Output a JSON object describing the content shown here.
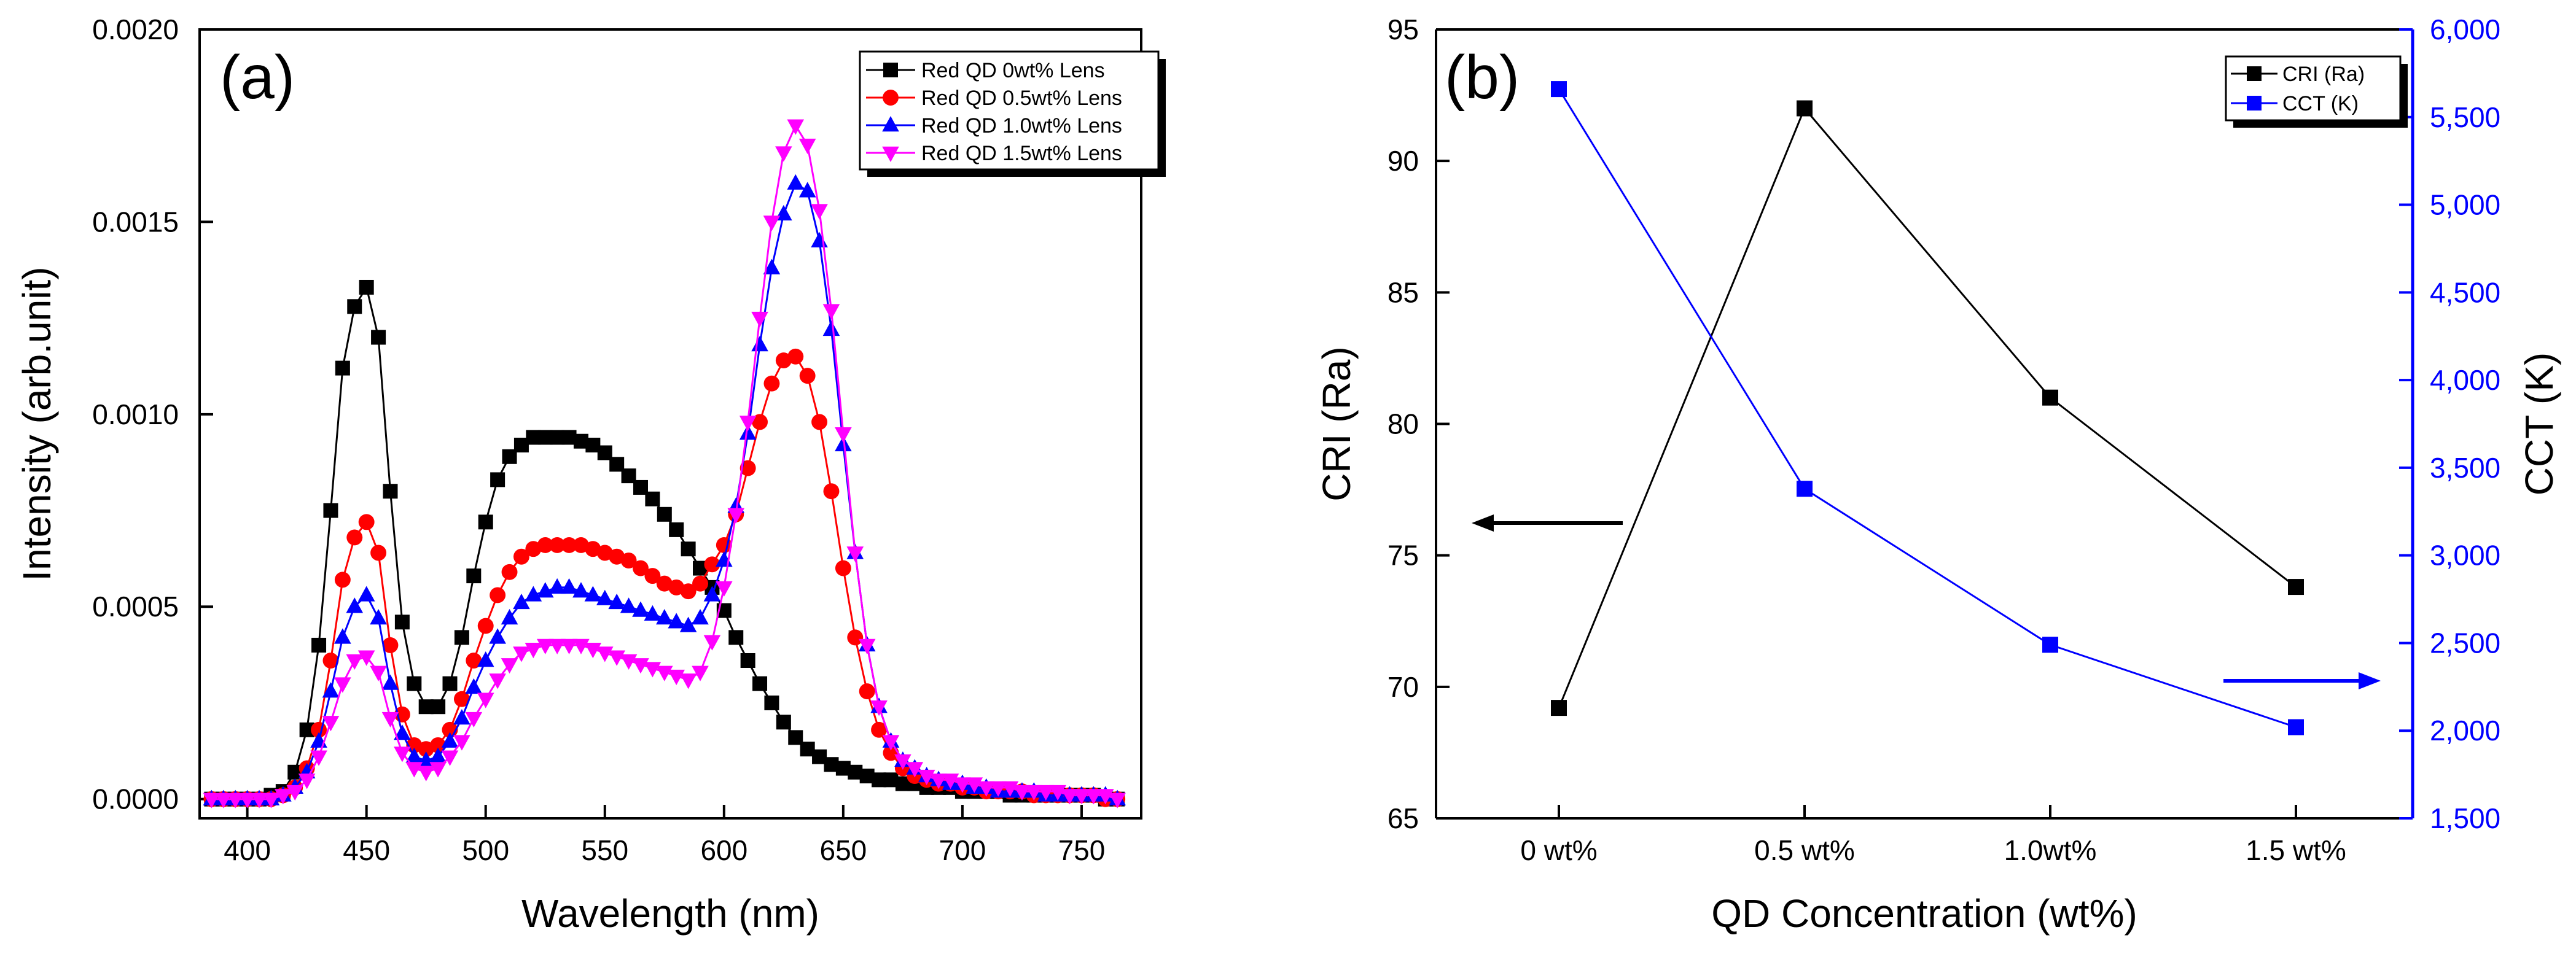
{
  "chart_data": [
    {
      "type": "scatter",
      "panel_label": "(a)",
      "xlabel": "Wavelength (nm)",
      "ylabel": "Intensity (arb.unit)",
      "xlim": [
        380,
        775
      ],
      "ylim": [
        -5e-05,
        0.002
      ],
      "xticks": [
        400,
        450,
        500,
        550,
        600,
        650,
        700,
        750
      ],
      "yticks": [
        0.0,
        0.0005,
        0.001,
        0.0015,
        0.002
      ],
      "ytick_labels": [
        "0.0000",
        "0.0005",
        "0.0010",
        "0.0015",
        "0.0020"
      ],
      "legend_position": "top-right",
      "x": [
        385,
        390,
        395,
        400,
        405,
        410,
        415,
        420,
        425,
        430,
        435,
        440,
        445,
        450,
        455,
        460,
        465,
        470,
        475,
        480,
        485,
        490,
        495,
        500,
        505,
        510,
        515,
        520,
        525,
        530,
        535,
        540,
        545,
        550,
        555,
        560,
        565,
        570,
        575,
        580,
        585,
        590,
        595,
        600,
        605,
        610,
        615,
        620,
        625,
        630,
        635,
        640,
        645,
        650,
        655,
        660,
        665,
        670,
        675,
        680,
        685,
        690,
        695,
        700,
        705,
        710,
        715,
        720,
        725,
        730,
        735,
        740,
        745,
        750,
        755,
        760,
        765
      ],
      "series": [
        {
          "name": "Red QD 0wt% Lens",
          "color": "#000000",
          "marker": "square",
          "values": [
            0.0,
            0.0,
            0.0,
            0.0,
            0.0,
            1e-05,
            2e-05,
            7e-05,
            0.00018,
            0.0004,
            0.00075,
            0.00112,
            0.00128,
            0.00133,
            0.0012,
            0.0008,
            0.00046,
            0.0003,
            0.00024,
            0.00024,
            0.0003,
            0.00042,
            0.00058,
            0.00072,
            0.00083,
            0.00089,
            0.00092,
            0.00094,
            0.00094,
            0.00094,
            0.00094,
            0.00093,
            0.00092,
            0.0009,
            0.00087,
            0.00084,
            0.00081,
            0.00078,
            0.00074,
            0.0007,
            0.00065,
            0.0006,
            0.00055,
            0.00049,
            0.00042,
            0.00036,
            0.0003,
            0.00025,
            0.0002,
            0.00016,
            0.00013,
            0.00011,
            9e-05,
            8e-05,
            7e-05,
            6e-05,
            5e-05,
            5e-05,
            4e-05,
            4e-05,
            3e-05,
            3e-05,
            3e-05,
            2e-05,
            2e-05,
            2e-05,
            2e-05,
            1e-05,
            1e-05,
            1e-05,
            1e-05,
            1e-05,
            1e-05,
            1e-05,
            1e-05,
            0.0,
            0.0
          ]
        },
        {
          "name": "Red QD 0.5wt% Lens",
          "color": "#ff0000",
          "marker": "circle",
          "values": [
            0.0,
            0.0,
            0.0,
            0.0,
            0.0,
            0.0,
            1e-05,
            3e-05,
            8e-05,
            0.00018,
            0.00036,
            0.00057,
            0.00068,
            0.00072,
            0.00064,
            0.0004,
            0.00022,
            0.00014,
            0.00013,
            0.00014,
            0.00018,
            0.00026,
            0.00036,
            0.00045,
            0.00053,
            0.00059,
            0.00063,
            0.00065,
            0.00066,
            0.00066,
            0.00066,
            0.00066,
            0.00065,
            0.00064,
            0.00063,
            0.00062,
            0.0006,
            0.00058,
            0.00056,
            0.00055,
            0.00054,
            0.00056,
            0.00061,
            0.00066,
            0.00074,
            0.00086,
            0.00098,
            0.00108,
            0.00114,
            0.00115,
            0.0011,
            0.00098,
            0.0008,
            0.0006,
            0.00042,
            0.00028,
            0.00018,
            0.00012,
            8e-05,
            6e-05,
            5e-05,
            4e-05,
            4e-05,
            3e-05,
            3e-05,
            2e-05,
            2e-05,
            2e-05,
            2e-05,
            1e-05,
            1e-05,
            1e-05,
            1e-05,
            1e-05,
            1e-05,
            0.0,
            0.0
          ]
        },
        {
          "name": "Red QD 1.0wt% Lens",
          "color": "#0000ff",
          "marker": "triangle-up",
          "values": [
            0.0,
            0.0,
            0.0,
            0.0,
            0.0,
            0.0,
            1e-05,
            3e-05,
            7e-05,
            0.00015,
            0.00028,
            0.00042,
            0.0005,
            0.00053,
            0.00047,
            0.0003,
            0.00017,
            0.00011,
            0.0001,
            0.00011,
            0.00015,
            0.00021,
            0.00029,
            0.00036,
            0.00042,
            0.00047,
            0.00051,
            0.00053,
            0.00054,
            0.00055,
            0.00055,
            0.00054,
            0.00053,
            0.00052,
            0.00051,
            0.0005,
            0.00049,
            0.00048,
            0.00047,
            0.00046,
            0.00045,
            0.00047,
            0.00053,
            0.00062,
            0.00076,
            0.00095,
            0.00118,
            0.00138,
            0.00152,
            0.0016,
            0.00158,
            0.00145,
            0.00122,
            0.00092,
            0.00064,
            0.0004,
            0.00024,
            0.00015,
            0.0001,
            8e-05,
            6e-05,
            5e-05,
            4e-05,
            4e-05,
            3e-05,
            3e-05,
            2e-05,
            2e-05,
            2e-05,
            2e-05,
            1e-05,
            1e-05,
            1e-05,
            1e-05,
            1e-05,
            1e-05,
            0.0
          ]
        },
        {
          "name": "Red QD 1.5wt% Lens",
          "color": "#ff00ff",
          "marker": "triangle-down",
          "values": [
            0.0,
            0.0,
            0.0,
            0.0,
            0.0,
            0.0,
            1e-05,
            2e-05,
            5e-05,
            0.00011,
            0.0002,
            0.0003,
            0.00036,
            0.00037,
            0.00033,
            0.00021,
            0.00012,
            8e-05,
            7e-05,
            8e-05,
            0.00011,
            0.00015,
            0.00021,
            0.00026,
            0.00031,
            0.00035,
            0.00038,
            0.00039,
            0.0004,
            0.0004,
            0.0004,
            0.0004,
            0.00039,
            0.00038,
            0.00037,
            0.00036,
            0.00035,
            0.00034,
            0.00033,
            0.00032,
            0.00031,
            0.00033,
            0.00041,
            0.00055,
            0.00074,
            0.00098,
            0.00125,
            0.0015,
            0.00168,
            0.00175,
            0.0017,
            0.00153,
            0.00127,
            0.00095,
            0.00064,
            0.0004,
            0.00024,
            0.00015,
            0.0001,
            8e-05,
            6e-05,
            5e-05,
            5e-05,
            4e-05,
            4e-05,
            3e-05,
            3e-05,
            3e-05,
            2e-05,
            2e-05,
            2e-05,
            2e-05,
            1e-05,
            1e-05,
            1e-05,
            1e-05,
            0.0
          ]
        }
      ]
    },
    {
      "type": "line",
      "panel_label": "(b)",
      "xlabel": "QD Concentration (wt%)",
      "categories": [
        "0 wt%",
        "0.5 wt%",
        "1.0wt%",
        "1.5 wt%"
      ],
      "legend_position": "top-right",
      "left_axis": {
        "label": "CRI (Ra)",
        "ylim": [
          65,
          95
        ],
        "ticks": [
          65,
          70,
          75,
          80,
          85,
          90,
          95
        ],
        "tick_labels": [
          "65",
          "70",
          "75",
          "80",
          "85",
          "90",
          "95"
        ]
      },
      "right_axis": {
        "label": "CCT (K)",
        "ylim": [
          1500,
          6000
        ],
        "ticks": [
          1500,
          2000,
          2500,
          3000,
          3500,
          4000,
          4500,
          5000,
          5500,
          6000
        ],
        "tick_labels": [
          "1,500",
          "2,000",
          "2,500",
          "3,000",
          "3,500",
          "4,000",
          "4,500",
          "5,000",
          "5,500",
          "6,000"
        ]
      },
      "series": [
        {
          "name": "CRI (Ra)",
          "axis": "left",
          "color": "#000000",
          "marker": "square",
          "values": [
            69.2,
            92.0,
            81.0,
            73.8
          ]
        },
        {
          "name": "CCT (K)",
          "axis": "right",
          "color": "#0000ff",
          "marker": "square",
          "values": [
            5660,
            3380,
            2490,
            2020
          ]
        }
      ],
      "annotations": [
        {
          "type": "arrow",
          "direction": "left",
          "color": "#000000",
          "points_to": "left_axis"
        },
        {
          "type": "arrow",
          "direction": "right",
          "color": "#0000ff",
          "points_to": "right_axis"
        }
      ]
    }
  ]
}
